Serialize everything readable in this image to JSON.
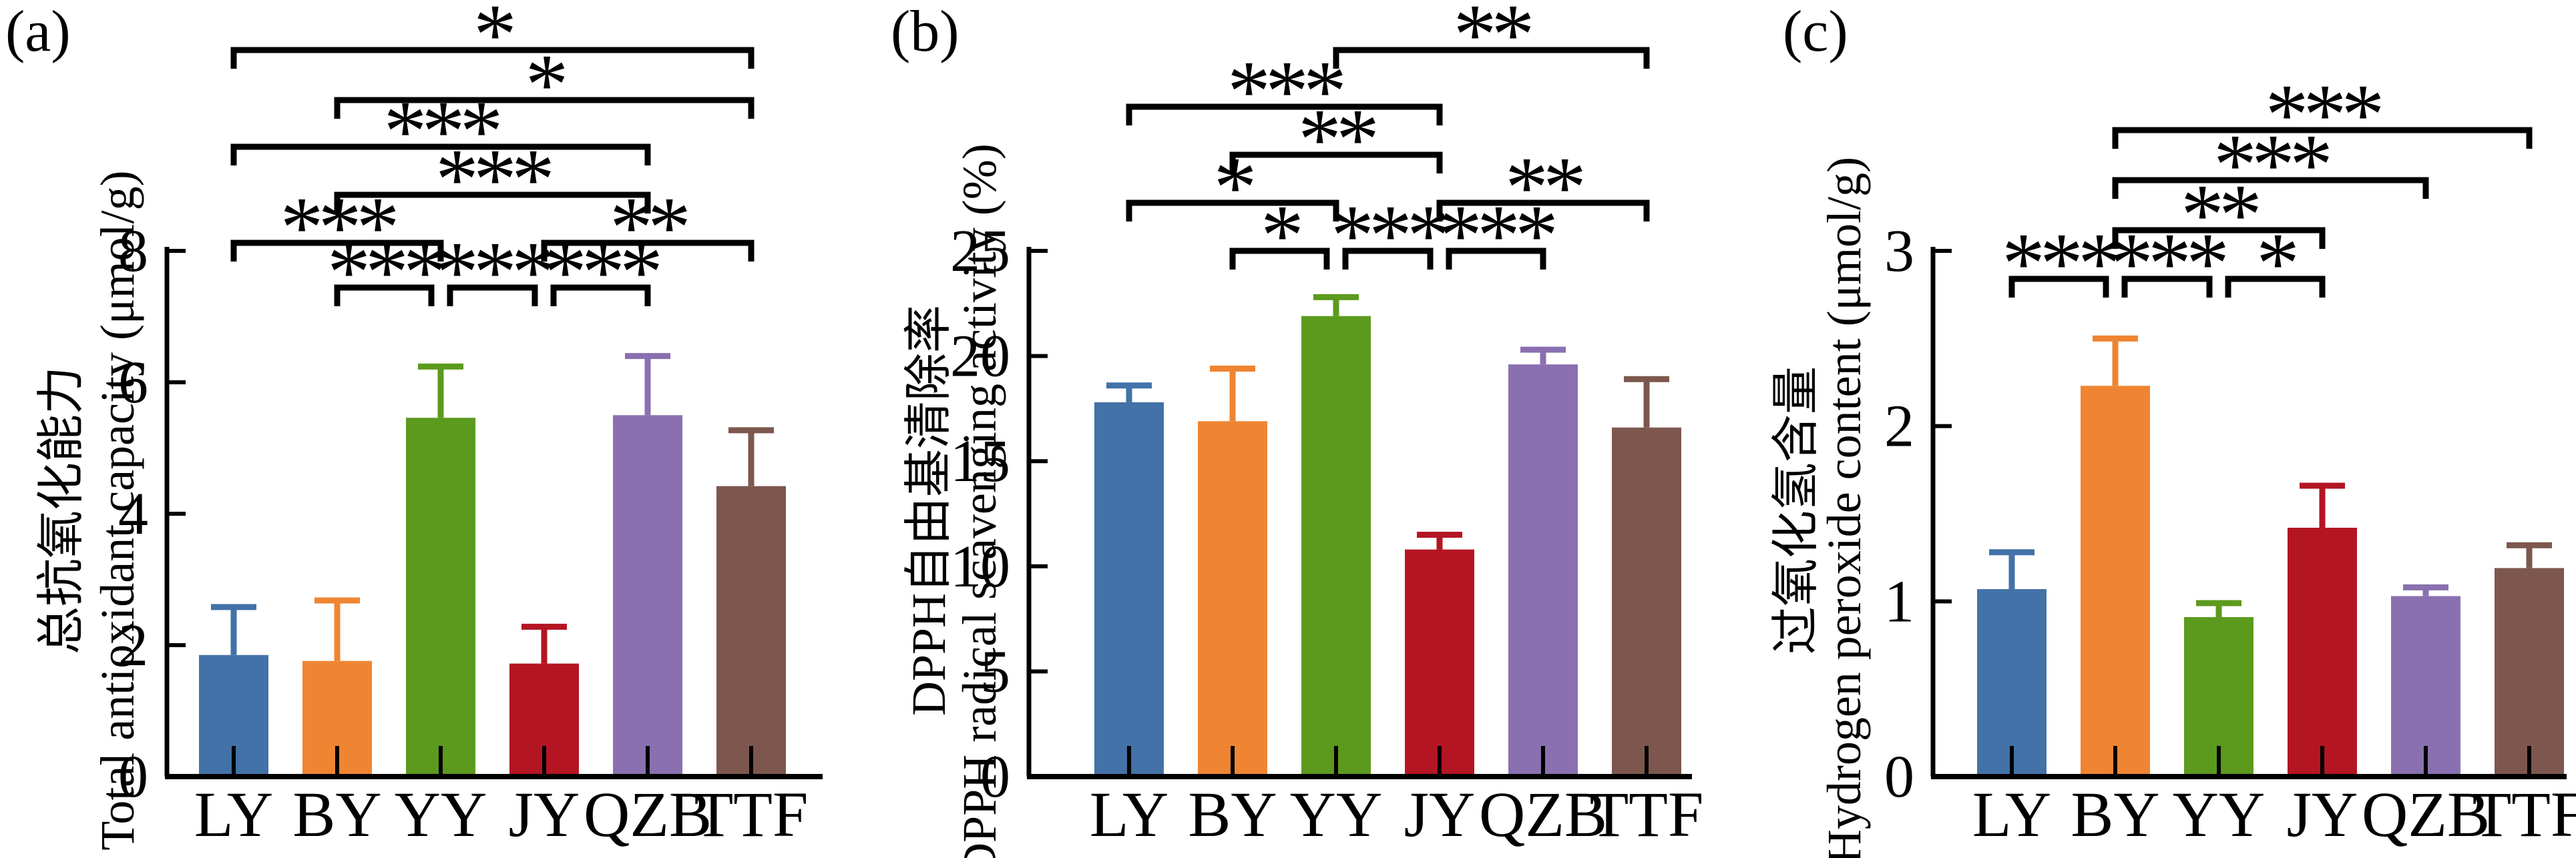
{
  "palette": {
    "LY": "#4272A8",
    "BY": "#EF8532",
    "YY": "#5C9A1E",
    "JY": "#B41523",
    "QZB": "#8A70B0",
    "TTF": "#7D574E"
  },
  "axis_color": "#000000",
  "chart_data": [
    {
      "type": "bar",
      "panel_label": "(a)",
      "title": "",
      "categories": [
        "LY",
        "BY",
        "YY",
        "JY",
        "QZB",
        "TTF"
      ],
      "values": [
        1.85,
        1.76,
        5.46,
        1.72,
        5.5,
        4.42
      ],
      "errors_up": [
        0.73,
        0.92,
        0.78,
        0.56,
        0.9,
        0.85
      ],
      "ylabel_zh": "总抗氧化能力",
      "ylabel_en": "Total antioxidant capacity (μmol/g)",
      "yticks": [
        0,
        2,
        4,
        6,
        8
      ],
      "ylim": [
        0,
        8
      ],
      "grid": false,
      "legend": "none",
      "significance": [
        {
          "row": 1,
          "pair": [
            "LY",
            "TTF"
          ],
          "stars": "*"
        },
        {
          "row": 2,
          "pair": [
            "BY",
            "TTF"
          ],
          "stars": "*"
        },
        {
          "row": 3,
          "pair": [
            "LY",
            "QZB"
          ],
          "stars": "***"
        },
        {
          "row": 4,
          "pair": [
            "BY",
            "QZB"
          ],
          "stars": "***"
        },
        {
          "row": 5,
          "pair": [
            "LY",
            "YY"
          ],
          "stars": "***"
        },
        {
          "row": 5,
          "pair": [
            "JY",
            "TTF"
          ],
          "stars": "**"
        },
        {
          "row": 6,
          "pair": [
            "BY",
            "YY"
          ],
          "stars": "***"
        },
        {
          "row": 6,
          "pair": [
            "YY",
            "JY"
          ],
          "stars": "***"
        },
        {
          "row": 6,
          "pair": [
            "JY",
            "QZB"
          ],
          "stars": "***"
        }
      ]
    },
    {
      "type": "bar",
      "panel_label": "(b)",
      "title": "",
      "categories": [
        "LY",
        "BY",
        "YY",
        "JY",
        "QZB",
        "TTF"
      ],
      "values": [
        17.8,
        16.9,
        21.9,
        10.8,
        19.6,
        16.6
      ],
      "errors_up": [
        0.8,
        2.5,
        0.9,
        0.7,
        0.7,
        2.3
      ],
      "ylabel_zh": "DPPH自由基清除率",
      "ylabel_en": "DPPH radical scavenging activity (%)",
      "yticks": [
        0,
        5,
        10,
        15,
        20,
        25
      ],
      "ylim": [
        0,
        25
      ],
      "grid": false,
      "legend": "none",
      "significance": [
        {
          "row": 1,
          "pair": [
            "YY",
            "TTF"
          ],
          "stars": "**"
        },
        {
          "row": 2,
          "pair": [
            "LY",
            "JY"
          ],
          "stars": "***"
        },
        {
          "row": 3,
          "pair": [
            "BY",
            "JY"
          ],
          "stars": "**"
        },
        {
          "row": 4,
          "pair": [
            "LY",
            "YY"
          ],
          "stars": "*"
        },
        {
          "row": 4,
          "pair": [
            "JY",
            "TTF"
          ],
          "stars": "**"
        },
        {
          "row": 5,
          "pair": [
            "BY",
            "YY"
          ],
          "stars": "*"
        },
        {
          "row": 5,
          "pair": [
            "YY",
            "JY"
          ],
          "stars": "***"
        },
        {
          "row": 5,
          "pair": [
            "JY",
            "QZB"
          ],
          "stars": "***"
        }
      ]
    },
    {
      "type": "bar",
      "panel_label": "(c)",
      "title": "",
      "categories": [
        "LY",
        "BY",
        "YY",
        "JY",
        "QZB",
        "TTF"
      ],
      "values": [
        1.07,
        2.23,
        0.91,
        1.42,
        1.03,
        1.19
      ],
      "errors_up": [
        0.21,
        0.27,
        0.08,
        0.24,
        0.05,
        0.13
      ],
      "ylabel_zh": "过氧化氢含量",
      "ylabel_en": "Hydrogen peroxide content (μmol/g)",
      "yticks": [
        0,
        1,
        2,
        3
      ],
      "ylim": [
        0,
        3
      ],
      "grid": false,
      "legend": "none",
      "significance": [
        {
          "row": 1,
          "pair": [
            "BY",
            "TTF"
          ],
          "stars": "***"
        },
        {
          "row": 2,
          "pair": [
            "BY",
            "QZB"
          ],
          "stars": "***"
        },
        {
          "row": 3,
          "pair": [
            "BY",
            "JY"
          ],
          "stars": "**"
        },
        {
          "row": 4,
          "pair": [
            "LY",
            "BY"
          ],
          "stars": "***"
        },
        {
          "row": 4,
          "pair": [
            "BY",
            "YY"
          ],
          "stars": "***"
        },
        {
          "row": 4,
          "pair": [
            "YY",
            "JY"
          ],
          "stars": "*"
        }
      ]
    }
  ]
}
